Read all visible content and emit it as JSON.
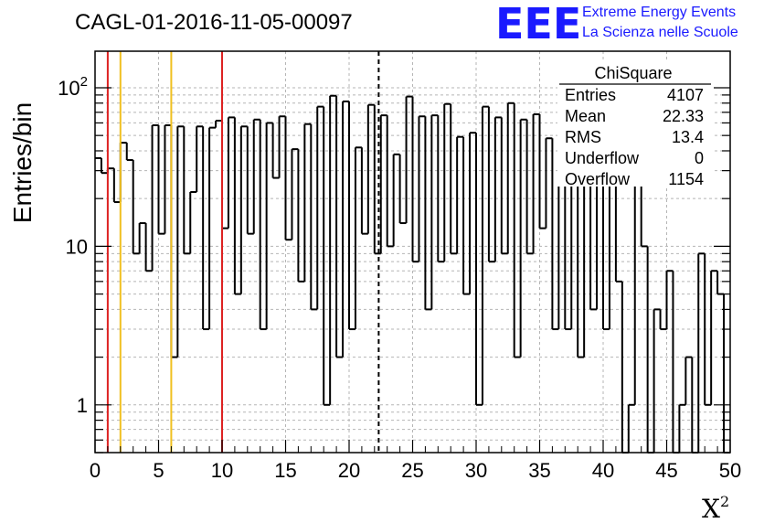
{
  "chart_data": {
    "type": "bar",
    "histogram": true,
    "title": "CAGL-01-2016-11-05-00097",
    "xlabel": "X",
    "xlabel_sup": "2",
    "ylabel": "Entries/bin",
    "xlim": [
      0,
      50
    ],
    "ylim": [
      0.5,
      170
    ],
    "yscale": "log",
    "grid": true,
    "bin_width": 0.5,
    "x_ticks": [
      "0",
      "5",
      "10",
      "15",
      "20",
      "25",
      "30",
      "35",
      "40",
      "45",
      "50"
    ],
    "y_ticks": [
      {
        "base": "1",
        "exp": ""
      },
      {
        "base": "10",
        "exp": ""
      },
      {
        "base": "10",
        "exp": "2"
      }
    ],
    "values": [
      36,
      29,
      31,
      19,
      45,
      35,
      9,
      14,
      7,
      58,
      12,
      58,
      2,
      57,
      9,
      22,
      57,
      3,
      56,
      62,
      13,
      65,
      5,
      57,
      12,
      63,
      3,
      60,
      27,
      66,
      11,
      41,
      6,
      59,
      4,
      76,
      1,
      89,
      2,
      82,
      3,
      42,
      12,
      78,
      9,
      67,
      10,
      38,
      14,
      88,
      8,
      66,
      4,
      67,
      8,
      79,
      9,
      49,
      5,
      52,
      1,
      76,
      8,
      65,
      9,
      80,
      2,
      63,
      9,
      68,
      13,
      48,
      3,
      66,
      3,
      69,
      2,
      55,
      4,
      75,
      3,
      54,
      6,
      0.4,
      1,
      53,
      10,
      0.4,
      4,
      3,
      7,
      0.4,
      1,
      2,
      0.4,
      9,
      1,
      7,
      5,
      0.4
    ],
    "vertical_lines": [
      {
        "x": 1,
        "color": "#dd2222",
        "style": "solid"
      },
      {
        "x": 2,
        "color": "#f0c020",
        "style": "solid"
      },
      {
        "x": 6,
        "color": "#f0c020",
        "style": "solid"
      },
      {
        "x": 10,
        "color": "#dd2222",
        "style": "solid"
      },
      {
        "x": 22.33,
        "color": "#000000",
        "style": "dashed"
      }
    ],
    "stats_box": {
      "title": "ChiSquare",
      "rows": [
        {
          "label": "Entries",
          "value": "4107"
        },
        {
          "label": "Mean",
          "value": "22.33"
        },
        {
          "label": "RMS",
          "value": "13.4"
        },
        {
          "label": "Underflow",
          "value": "0"
        },
        {
          "label": "Overflow",
          "value": "1154"
        }
      ]
    }
  },
  "logo": {
    "mark": "EEE",
    "line1": "Extreme Energy Events",
    "line2": "La Scienza nelle Scuole",
    "color": "#1a1aff"
  }
}
